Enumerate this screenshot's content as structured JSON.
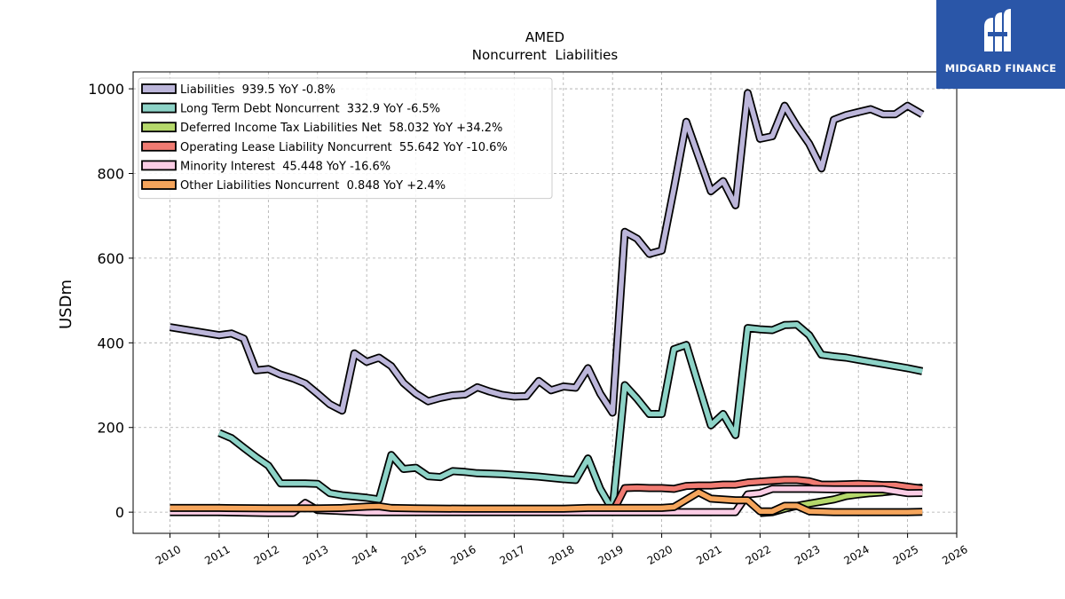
{
  "brand": {
    "name": "MIDGARD FINANCE",
    "icon": "midgard-logo-icon",
    "color": "#2a56a8"
  },
  "chart_data": {
    "type": "line",
    "title": "AMED",
    "subtitle": "Noncurrent  Liabilities",
    "xlabel": "",
    "ylabel": "USDm",
    "xlim": [
      2009.25,
      2026.0
    ],
    "ylim": [
      -50,
      1040
    ],
    "xticks": [
      2010,
      2011,
      2012,
      2013,
      2014,
      2015,
      2016,
      2017,
      2018,
      2019,
      2020,
      2021,
      2022,
      2023,
      2024,
      2025,
      2026
    ],
    "yticks": [
      0,
      200,
      400,
      600,
      800,
      1000
    ],
    "grid": true,
    "legend_position": "top-left",
    "series": [
      {
        "name": "Liabilities",
        "legend": "Liabilities  939.5 YoY -0.8%",
        "color": "#bcb6da",
        "points": [
          [
            2010.0,
            437
          ],
          [
            2011.0,
            418
          ],
          [
            2011.25,
            422
          ],
          [
            2011.5,
            410
          ],
          [
            2011.75,
            335
          ],
          [
            2012.0,
            338
          ],
          [
            2012.25,
            325
          ],
          [
            2012.5,
            316
          ],
          [
            2012.75,
            304
          ],
          [
            2013.0,
            280
          ],
          [
            2013.25,
            255
          ],
          [
            2013.5,
            240
          ],
          [
            2013.75,
            375
          ],
          [
            2014.0,
            355
          ],
          [
            2014.25,
            365
          ],
          [
            2014.5,
            345
          ],
          [
            2014.75,
            305
          ],
          [
            2015.0,
            280
          ],
          [
            2015.25,
            262
          ],
          [
            2015.5,
            270
          ],
          [
            2015.75,
            276
          ],
          [
            2016.0,
            278
          ],
          [
            2016.25,
            295
          ],
          [
            2016.5,
            285
          ],
          [
            2016.75,
            277
          ],
          [
            2017.0,
            273
          ],
          [
            2017.25,
            274
          ],
          [
            2017.5,
            310
          ],
          [
            2017.75,
            288
          ],
          [
            2018.0,
            297
          ],
          [
            2018.25,
            294
          ],
          [
            2018.5,
            340
          ],
          [
            2018.75,
            280
          ],
          [
            2019.0,
            235
          ],
          [
            2019.25,
            662
          ],
          [
            2019.5,
            646
          ],
          [
            2019.75,
            610
          ],
          [
            2020.0,
            618
          ],
          [
            2020.25,
            765
          ],
          [
            2020.5,
            922
          ],
          [
            2020.75,
            840
          ],
          [
            2021.0,
            758
          ],
          [
            2021.25,
            782
          ],
          [
            2021.5,
            725
          ],
          [
            2021.75,
            990
          ],
          [
            2022.0,
            882
          ],
          [
            2022.25,
            888
          ],
          [
            2022.5,
            960
          ],
          [
            2022.75,
            912
          ],
          [
            2023.0,
            870
          ],
          [
            2023.25,
            812
          ],
          [
            2023.5,
            927
          ],
          [
            2023.75,
            938
          ],
          [
            2024.0,
            945
          ],
          [
            2024.25,
            952
          ],
          [
            2024.5,
            940
          ],
          [
            2024.75,
            940
          ],
          [
            2025.0,
            960
          ],
          [
            2025.3,
            939.5
          ]
        ]
      },
      {
        "name": "Long Term Debt Noncurrent",
        "legend": "Long Term Debt Noncurrent  332.9 YoY -6.5%",
        "color": "#8dd3c7",
        "points": [
          [
            2011.0,
            187
          ],
          [
            2011.25,
            175
          ],
          [
            2011.5,
            152
          ],
          [
            2011.75,
            130
          ],
          [
            2012.0,
            110
          ],
          [
            2012.25,
            68
          ],
          [
            2012.5,
            68
          ],
          [
            2012.75,
            68
          ],
          [
            2013.0,
            67
          ],
          [
            2013.25,
            45
          ],
          [
            2013.5,
            40
          ],
          [
            2013.75,
            37
          ],
          [
            2014.0,
            34
          ],
          [
            2014.25,
            30
          ],
          [
            2014.5,
            135
          ],
          [
            2014.75,
            102
          ],
          [
            2015.0,
            105
          ],
          [
            2015.25,
            85
          ],
          [
            2015.5,
            83
          ],
          [
            2015.75,
            97
          ],
          [
            2016.0,
            95
          ],
          [
            2016.25,
            92
          ],
          [
            2016.5,
            91
          ],
          [
            2016.75,
            90
          ],
          [
            2017.0,
            88
          ],
          [
            2017.25,
            86
          ],
          [
            2017.5,
            84
          ],
          [
            2017.75,
            81
          ],
          [
            2018.0,
            78
          ],
          [
            2018.25,
            76
          ],
          [
            2018.5,
            127
          ],
          [
            2018.75,
            55
          ],
          [
            2019.0,
            5
          ],
          [
            2019.25,
            300
          ],
          [
            2019.5,
            268
          ],
          [
            2019.75,
            232
          ],
          [
            2020.0,
            232
          ],
          [
            2020.25,
            385
          ],
          [
            2020.5,
            395
          ],
          [
            2020.75,
            300
          ],
          [
            2021.0,
            205
          ],
          [
            2021.25,
            232
          ],
          [
            2021.5,
            182
          ],
          [
            2021.75,
            435
          ],
          [
            2022.0,
            432
          ],
          [
            2022.25,
            430
          ],
          [
            2022.5,
            442
          ],
          [
            2022.75,
            443
          ],
          [
            2023.0,
            418
          ],
          [
            2023.25,
            372
          ],
          [
            2023.5,
            368
          ],
          [
            2023.75,
            365
          ],
          [
            2024.0,
            360
          ],
          [
            2024.25,
            355
          ],
          [
            2024.5,
            350
          ],
          [
            2024.75,
            345
          ],
          [
            2025.0,
            340
          ],
          [
            2025.3,
            332.9
          ]
        ]
      },
      {
        "name": "Deferred Income Tax Liabilities Net",
        "legend": "Deferred Income Tax Liabilities Net  58.032 YoY +34.2%",
        "color": "#b5d86b",
        "points": [
          [
            2022.0,
            -2
          ],
          [
            2022.25,
            0
          ],
          [
            2022.5,
            8
          ],
          [
            2022.75,
            15
          ],
          [
            2023.0,
            20
          ],
          [
            2023.25,
            25
          ],
          [
            2023.5,
            30
          ],
          [
            2023.75,
            38
          ],
          [
            2024.0,
            42
          ],
          [
            2024.25,
            45
          ],
          [
            2024.5,
            47
          ],
          [
            2024.75,
            50
          ],
          [
            2025.0,
            55
          ],
          [
            2025.3,
            58.032
          ]
        ]
      },
      {
        "name": "Operating Lease Liability Noncurrent",
        "legend": "Operating Lease Liability Noncurrent  55.642 YoY -10.6%",
        "color": "#f07b72",
        "points": [
          [
            2019.0,
            0
          ],
          [
            2019.25,
            57
          ],
          [
            2019.5,
            58
          ],
          [
            2019.75,
            57
          ],
          [
            2020.0,
            57
          ],
          [
            2020.25,
            55
          ],
          [
            2020.5,
            62
          ],
          [
            2020.75,
            63
          ],
          [
            2021.0,
            63
          ],
          [
            2021.25,
            65
          ],
          [
            2021.5,
            65
          ],
          [
            2021.75,
            70
          ],
          [
            2022.0,
            72
          ],
          [
            2022.25,
            74
          ],
          [
            2022.5,
            76
          ],
          [
            2022.75,
            76
          ],
          [
            2023.0,
            73
          ],
          [
            2023.25,
            65
          ],
          [
            2023.5,
            65
          ],
          [
            2023.75,
            66
          ],
          [
            2024.0,
            67
          ],
          [
            2024.25,
            66
          ],
          [
            2024.5,
            64
          ],
          [
            2024.75,
            64
          ],
          [
            2025.0,
            60
          ],
          [
            2025.3,
            55.642
          ]
        ]
      },
      {
        "name": "Minority Interest",
        "legend": "Minority Interest  45.448 YoY -16.6%",
        "color": "#fbcde5",
        "points": [
          [
            2010.0,
            0
          ],
          [
            2011.0,
            0
          ],
          [
            2012.0,
            -2
          ],
          [
            2012.5,
            -2
          ],
          [
            2012.75,
            22
          ],
          [
            2013.0,
            5
          ],
          [
            2014.0,
            0
          ],
          [
            2015.0,
            0
          ],
          [
            2016.0,
            0
          ],
          [
            2017.0,
            0
          ],
          [
            2018.0,
            0
          ],
          [
            2019.0,
            0
          ],
          [
            2019.5,
            0
          ],
          [
            2020.0,
            0
          ],
          [
            2020.25,
            0
          ],
          [
            2020.5,
            0
          ],
          [
            2021.0,
            0
          ],
          [
            2021.5,
            0
          ],
          [
            2021.75,
            42
          ],
          [
            2022.0,
            45
          ],
          [
            2022.25,
            55
          ],
          [
            2022.5,
            55
          ],
          [
            2023.0,
            55
          ],
          [
            2023.5,
            54
          ],
          [
            2024.0,
            54
          ],
          [
            2024.5,
            54
          ],
          [
            2025.0,
            45
          ],
          [
            2025.3,
            45.448
          ]
        ]
      },
      {
        "name": "Other Liabilities Noncurrent",
        "legend": "Other Liabilities Noncurrent  0.848 YoY +2.4%",
        "color": "#f5a55c",
        "points": [
          [
            2010.0,
            10
          ],
          [
            2011.0,
            10
          ],
          [
            2012.0,
            9
          ],
          [
            2013.0,
            9
          ],
          [
            2013.5,
            10
          ],
          [
            2014.0,
            13
          ],
          [
            2014.25,
            14
          ],
          [
            2014.5,
            10
          ],
          [
            2015.0,
            9
          ],
          [
            2016.0,
            8
          ],
          [
            2017.0,
            8
          ],
          [
            2018.0,
            8
          ],
          [
            2018.5,
            10
          ],
          [
            2019.0,
            10
          ],
          [
            2019.5,
            10
          ],
          [
            2020.0,
            10
          ],
          [
            2020.25,
            12
          ],
          [
            2020.75,
            47
          ],
          [
            2021.0,
            32
          ],
          [
            2021.5,
            28
          ],
          [
            2021.75,
            28
          ],
          [
            2022.0,
            2
          ],
          [
            2022.25,
            2
          ],
          [
            2022.5,
            15
          ],
          [
            2022.75,
            15
          ],
          [
            2023.0,
            2
          ],
          [
            2023.5,
            0
          ],
          [
            2024.0,
            0
          ],
          [
            2024.5,
            0
          ],
          [
            2025.0,
            0
          ],
          [
            2025.3,
            0.848
          ]
        ]
      }
    ]
  }
}
